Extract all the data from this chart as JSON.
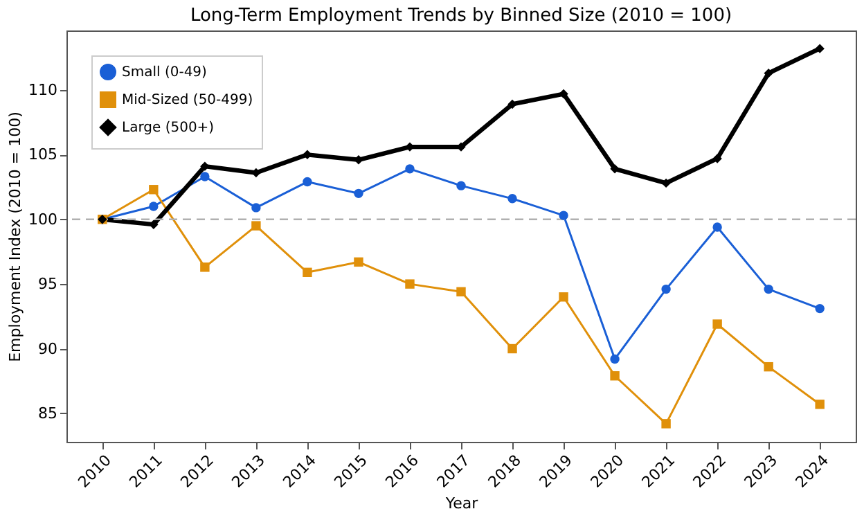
{
  "chart_data": {
    "type": "line",
    "title": "Long-Term Employment Trends by Binned Size (2010 = 100)",
    "xlabel": "Year",
    "ylabel": "Employment Index (2010 = 100)",
    "categories": [
      "2010",
      "2011",
      "2012",
      "2013",
      "2014",
      "2015",
      "2016",
      "2017",
      "2018",
      "2019",
      "2020",
      "2021",
      "2022",
      "2023",
      "2024"
    ],
    "series": [
      {
        "name": "Small (0-49)",
        "color": "#1a5fd6",
        "marker": "circle",
        "values": [
          100,
          101.0,
          103.3,
          100.9,
          102.9,
          102.0,
          103.9,
          102.6,
          101.6,
          100.3,
          89.2,
          94.6,
          99.4,
          94.6,
          93.1
        ]
      },
      {
        "name": "Mid-Sized (50-499)",
        "color": "#e0900a",
        "marker": "square",
        "values": [
          100,
          102.3,
          96.3,
          99.5,
          95.9,
          96.7,
          95.0,
          94.4,
          90.0,
          94.0,
          87.9,
          84.2,
          91.9,
          88.6,
          85.7
        ]
      },
      {
        "name": "Large (500+)",
        "color": "#000000",
        "marker": "diamond",
        "values": [
          100,
          99.6,
          104.1,
          103.6,
          105.0,
          104.6,
          105.6,
          105.6,
          108.9,
          109.7,
          103.9,
          102.8,
          104.7,
          111.3,
          113.2
        ]
      }
    ],
    "ylim": [
      82.8,
      114.6
    ],
    "yticks": [
      85,
      90,
      95,
      100,
      105,
      110
    ],
    "ref_lines": [
      {
        "axis": "y",
        "value": 100,
        "color": "#b0b0b0",
        "line_style": "dashed"
      }
    ],
    "grid": false,
    "legend": "top left",
    "line_style": "solid"
  }
}
